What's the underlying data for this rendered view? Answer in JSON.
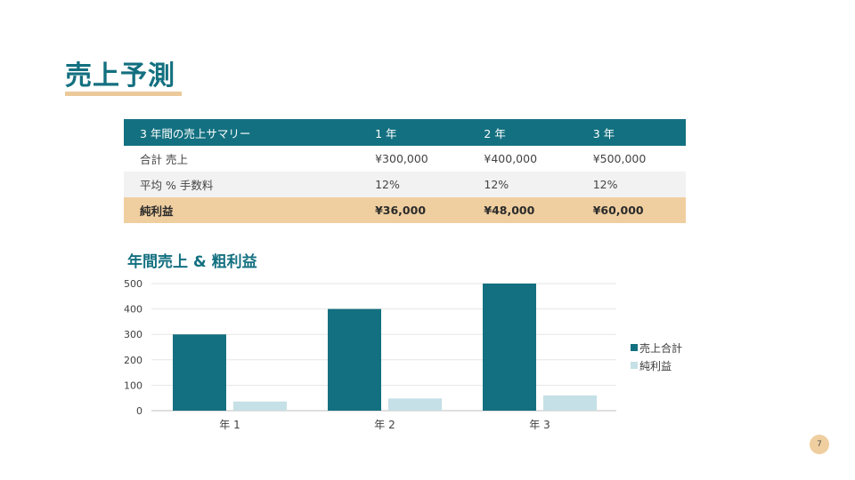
{
  "slide": {
    "title": "売上予測",
    "page_number": "7"
  },
  "colors": {
    "accent": "#137080",
    "highlight": "#EFCE9F",
    "light_series": "#C5E0E6"
  },
  "table": {
    "headers": [
      "3 年間の売上サマリー",
      "1 年",
      "2 年",
      "3 年"
    ],
    "rows": [
      [
        "合計 売上",
        "¥300,000",
        "¥400,000",
        "¥500,000"
      ],
      [
        "平均 % 手数料",
        "12%",
        "12%",
        "12%"
      ],
      [
        "純利益",
        "¥36,000",
        "¥48,000",
        "¥60,000"
      ]
    ]
  },
  "chart_data": {
    "type": "bar",
    "title": "年間売上 & 粗利益",
    "categories": [
      "年 1",
      "年 2",
      "年 3"
    ],
    "series": [
      {
        "name": "売上合計",
        "values": [
          300,
          400,
          500
        ],
        "color": "#137080"
      },
      {
        "name": "純利益",
        "values": [
          36,
          48,
          60
        ],
        "color": "#C5E0E6"
      }
    ],
    "ylim": [
      0,
      500
    ],
    "yticks": [
      "0",
      "100",
      "200",
      "300",
      "400",
      "500"
    ],
    "grid": true,
    "legend": "right"
  }
}
